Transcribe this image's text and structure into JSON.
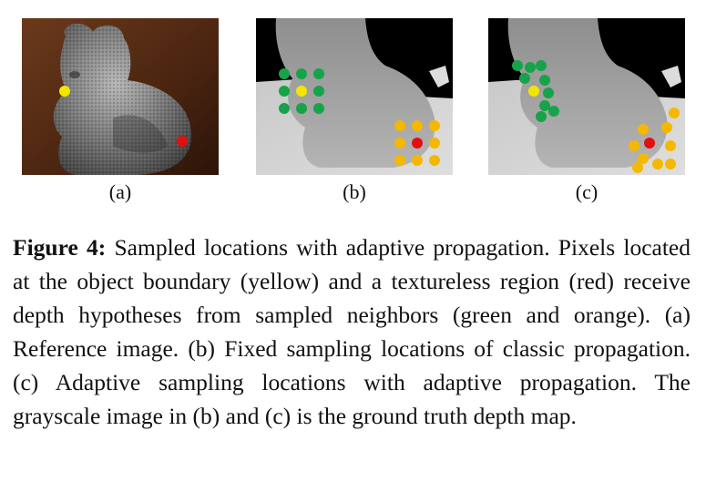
{
  "figure": {
    "panels": [
      {
        "id": "a",
        "label": "(a)",
        "content": "reference image of stone rabbit sculpture"
      },
      {
        "id": "b",
        "label": "(b)",
        "content": "ground truth depth map with fixed sampling locations"
      },
      {
        "id": "c",
        "label": "(c)",
        "content": "ground truth depth map with adaptive sampling locations"
      }
    ],
    "caption": {
      "label": "Figure 4:",
      "text": "Sampled locations with adaptive propagation. Pixels located at the object boundary (yellow) and a tex­tureless region (red) receive depth hypotheses from sampled neighbors (green and orange). (a) Reference image. (b) Fixed sampling locations of classic propagation. (c) Adap­tive sampling locations with adaptive propagation. The grayscale image in (b) and (c) is the ground truth depth map."
    },
    "colors": {
      "boundary_pixel": "#f2e600",
      "textureless_pixel": "#e01010",
      "boundary_neighbors": "#16a34a",
      "textureless_neighbors": "#f5b800"
    }
  }
}
